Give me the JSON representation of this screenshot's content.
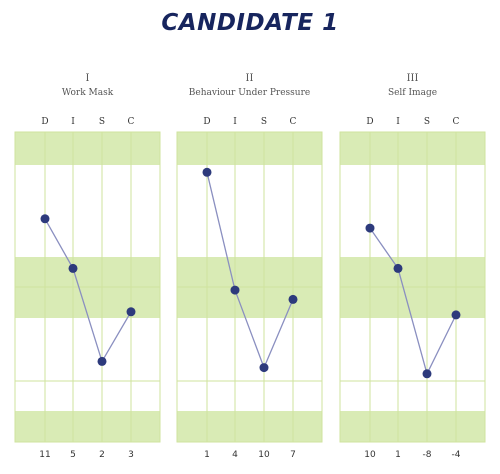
{
  "page_title": "CANDIDATE 1",
  "colors": {
    "band": "#d9ebb5",
    "grid": "#cfe39e",
    "line": "#8a8fc0",
    "point": "#2d3a7c",
    "title": "#17255e"
  },
  "chart_data": [
    {
      "type": "line",
      "numeral": "I",
      "title": "Work Mask",
      "categories": [
        "D",
        "I",
        "S",
        "C"
      ],
      "values": [
        11,
        5,
        2,
        3
      ],
      "levels": [
        0.72,
        0.56,
        0.26,
        0.42
      ]
    },
    {
      "type": "line",
      "numeral": "II",
      "title": "Behaviour Under Pressure",
      "categories": [
        "D",
        "I",
        "S",
        "C"
      ],
      "values": [
        1,
        4,
        10,
        7
      ],
      "levels": [
        0.87,
        0.49,
        0.24,
        0.46
      ]
    },
    {
      "type": "line",
      "numeral": "III",
      "title": "Self Image",
      "categories": [
        "D",
        "I",
        "S",
        "C"
      ],
      "values": [
        10,
        1,
        -8,
        -4
      ],
      "levels": [
        0.69,
        0.56,
        0.22,
        0.41
      ]
    }
  ]
}
